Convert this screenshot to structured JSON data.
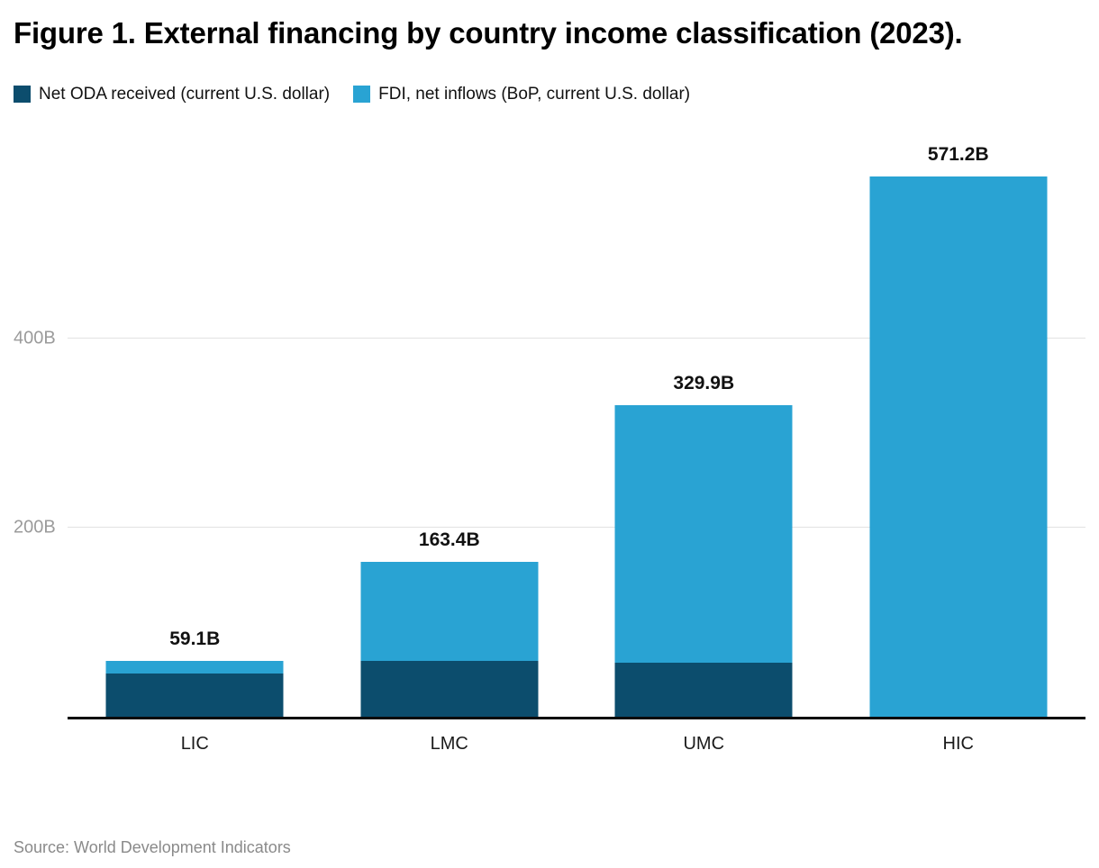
{
  "title": "Figure 1. External financing by country income classification (2023).",
  "legend": [
    {
      "label": "Net ODA received (current U.S. dollar)",
      "color": "#0c4d6d"
    },
    {
      "label": "FDI, net inflows (BoP, current U.S. dollar)",
      "color": "#29a3d3"
    }
  ],
  "source": "Source: World Development Indicators",
  "chart_data": {
    "type": "bar",
    "stacked": true,
    "title": "Figure 1. External financing by country income classification (2023).",
    "categories": [
      "LIC",
      "LMC",
      "UMC",
      "HIC"
    ],
    "series": [
      {
        "name": "Net ODA received (current U.S. dollar)",
        "short": "oda",
        "color": "#0c4d6d",
        "values": [
          45.7,
          59.0,
          57.1,
          0
        ]
      },
      {
        "name": "FDI, net inflows (BoP, current U.S. dollar)",
        "short": "fdi",
        "color": "#29a3d3",
        "values": [
          13.4,
          104.4,
          272.8,
          571.2
        ]
      }
    ],
    "totals": [
      59.1,
      163.4,
      329.9,
      571.2
    ],
    "total_labels": [
      "59.1B",
      "163.4B",
      "329.9B",
      "571.2B"
    ],
    "y_ticks": [
      {
        "value": 200,
        "label": "200B"
      },
      {
        "value": 400,
        "label": "400B"
      }
    ],
    "ylim": [
      0,
      617
    ],
    "xlabel": "",
    "ylabel": "",
    "grid": true,
    "legend_position": "top",
    "source_note": "Source: World Development Indicators"
  }
}
